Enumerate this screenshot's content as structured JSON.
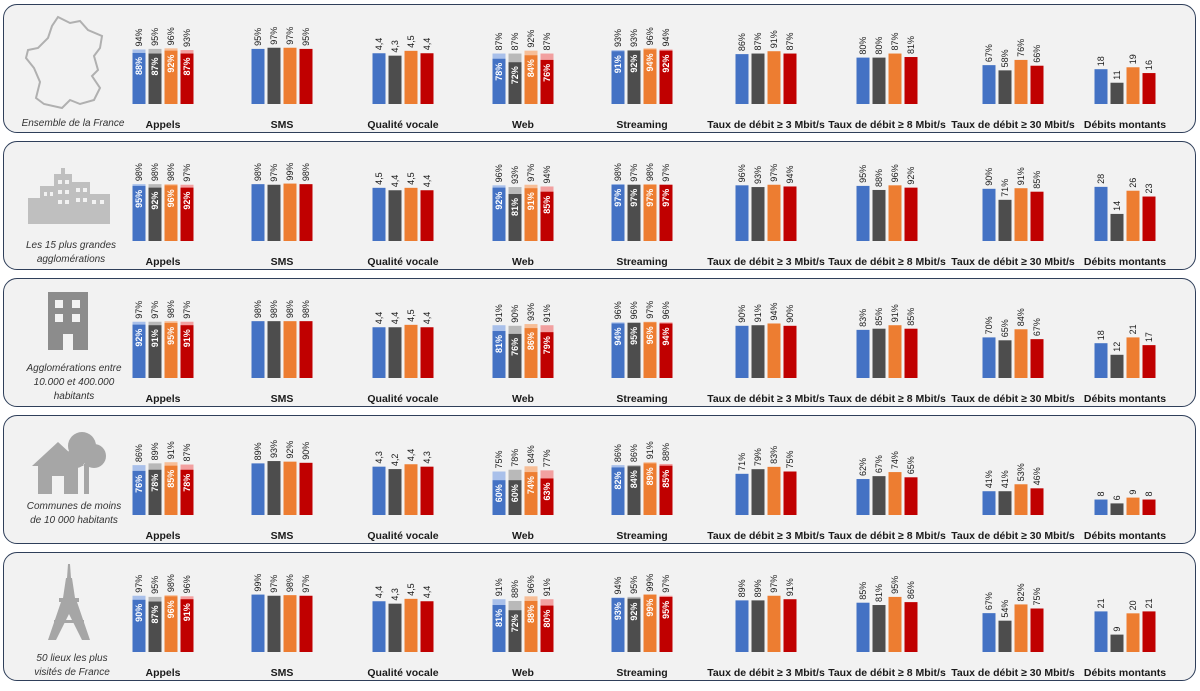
{
  "colors": {
    "operators": [
      "#4472c4",
      "#4d4d4d",
      "#ed7d31",
      "#c00000"
    ],
    "operators_light": [
      "#a9c0ea",
      "#b9b9b9",
      "#f7be97",
      "#f2a0a0"
    ]
  },
  "chart_data": [
    {
      "type": "bar",
      "zone": "Ensemble de la France",
      "icon": "france-map-icon",
      "metrics": [
        {
          "title": "Appels",
          "kind": "stacked",
          "series": [
            {
              "values": [
                88,
                87,
                92,
                87
              ]
            },
            {
              "values": [
                94,
                95,
                96,
                93
              ]
            }
          ]
        },
        {
          "title": "SMS",
          "kind": "single",
          "values": [
            95,
            97,
            97,
            95
          ]
        },
        {
          "title": "Qualité vocale",
          "kind": "single",
          "values": [
            4.4,
            4.3,
            4.5,
            4.4
          ]
        },
        {
          "title": "Web",
          "kind": "stacked",
          "series": [
            {
              "values": [
                78,
                72,
                84,
                76
              ]
            },
            {
              "values": [
                87,
                87,
                92,
                87
              ]
            }
          ]
        },
        {
          "title": "Streaming",
          "kind": "stacked",
          "series": [
            {
              "values": [
                91,
                92,
                94,
                92
              ]
            },
            {
              "values": [
                93,
                93,
                96,
                94
              ]
            }
          ]
        },
        {
          "title": "Taux de débit ≥ 3 Mbit/s",
          "kind": "single",
          "values": [
            86,
            87,
            91,
            87
          ]
        },
        {
          "title": "Taux de débit ≥ 8 Mbit/s",
          "kind": "single",
          "values": [
            80,
            80,
            87,
            81
          ]
        },
        {
          "title": "Taux de débit ≥ 30 Mbit/s",
          "kind": "single",
          "values": [
            67,
            58,
            76,
            66
          ]
        },
        {
          "title": "Débits montants",
          "kind": "single",
          "values": [
            18,
            11,
            19,
            16
          ]
        }
      ]
    },
    {
      "type": "bar",
      "zone": "Les 15 plus grandes agglomérations",
      "icon": "city-buildings-icon",
      "metrics": [
        {
          "title": "Appels",
          "kind": "stacked",
          "series": [
            {
              "values": [
                95,
                92,
                96,
                92
              ]
            },
            {
              "values": [
                98,
                98,
                98,
                97
              ]
            }
          ]
        },
        {
          "title": "SMS",
          "kind": "single",
          "values": [
            98,
            97,
            99,
            98
          ]
        },
        {
          "title": "Qualité vocale",
          "kind": "single",
          "values": [
            4.5,
            4.4,
            4.5,
            4.4
          ]
        },
        {
          "title": "Web",
          "kind": "stacked",
          "series": [
            {
              "values": [
                92,
                81,
                91,
                85
              ]
            },
            {
              "values": [
                96,
                93,
                97,
                94
              ]
            }
          ]
        },
        {
          "title": "Streaming",
          "kind": "stacked",
          "series": [
            {
              "values": [
                97,
                97,
                97,
                97
              ]
            },
            {
              "values": [
                98,
                97,
                98,
                97
              ]
            }
          ]
        },
        {
          "title": "Taux de débit ≥ 3 Mbit/s",
          "kind": "single",
          "values": [
            96,
            93,
            97,
            94
          ]
        },
        {
          "title": "Taux de débit ≥ 8 Mbit/s",
          "kind": "single",
          "values": [
            95,
            88,
            96,
            92
          ]
        },
        {
          "title": "Taux de débit ≥ 30 Mbit/s",
          "kind": "single",
          "values": [
            90,
            71,
            91,
            85
          ]
        },
        {
          "title": "Débits montants",
          "kind": "single",
          "values": [
            28,
            14,
            26,
            23
          ]
        }
      ]
    },
    {
      "type": "bar",
      "zone": "Agglomérations entre 10.000 et 400.000 habitants",
      "icon": "apartment-building-icon",
      "metrics": [
        {
          "title": "Appels",
          "kind": "stacked",
          "series": [
            {
              "values": [
                92,
                91,
                95,
                91
              ]
            },
            {
              "values": [
                97,
                97,
                98,
                97
              ]
            }
          ]
        },
        {
          "title": "SMS",
          "kind": "single",
          "values": [
            98,
            98,
            98,
            98
          ]
        },
        {
          "title": "Qualité vocale",
          "kind": "single",
          "values": [
            4.4,
            4.4,
            4.5,
            4.4
          ]
        },
        {
          "title": "Web",
          "kind": "stacked",
          "series": [
            {
              "values": [
                81,
                76,
                86,
                79
              ]
            },
            {
              "values": [
                91,
                90,
                93,
                91
              ]
            }
          ]
        },
        {
          "title": "Streaming",
          "kind": "stacked",
          "series": [
            {
              "values": [
                94,
                95,
                96,
                94
              ]
            },
            {
              "values": [
                96,
                96,
                97,
                96
              ]
            }
          ]
        },
        {
          "title": "Taux de débit ≥ 3 Mbit/s",
          "kind": "single",
          "values": [
            90,
            91,
            94,
            90
          ]
        },
        {
          "title": "Taux de débit ≥ 8 Mbit/s",
          "kind": "single",
          "values": [
            83,
            85,
            91,
            85
          ]
        },
        {
          "title": "Taux de débit ≥ 30 Mbit/s",
          "kind": "single",
          "values": [
            70,
            65,
            84,
            67
          ]
        },
        {
          "title": "Débits montants",
          "kind": "single",
          "values": [
            18,
            12,
            21,
            17
          ]
        }
      ]
    },
    {
      "type": "bar",
      "zone": "Communes de moins de 10 000 habitants",
      "icon": "house-tree-icon",
      "metrics": [
        {
          "title": "Appels",
          "kind": "stacked",
          "series": [
            {
              "values": [
                76,
                78,
                85,
                78
              ]
            },
            {
              "values": [
                86,
                89,
                91,
                87
              ]
            }
          ]
        },
        {
          "title": "SMS",
          "kind": "single",
          "values": [
            89,
            93,
            92,
            90
          ]
        },
        {
          "title": "Qualité vocale",
          "kind": "single",
          "values": [
            4.3,
            4.2,
            4.4,
            4.3
          ]
        },
        {
          "title": "Web",
          "kind": "stacked",
          "series": [
            {
              "values": [
                60,
                60,
                74,
                63
              ]
            },
            {
              "values": [
                75,
                78,
                84,
                77
              ]
            }
          ]
        },
        {
          "title": "Streaming",
          "kind": "stacked",
          "series": [
            {
              "values": [
                82,
                84,
                89,
                85
              ]
            },
            {
              "values": [
                86,
                86,
                91,
                88
              ]
            }
          ]
        },
        {
          "title": "Taux de débit ≥ 3 Mbit/s",
          "kind": "single",
          "values": [
            71,
            79,
            83,
            75
          ]
        },
        {
          "title": "Taux de débit ≥ 8 Mbit/s",
          "kind": "single",
          "values": [
            62,
            67,
            74,
            65
          ]
        },
        {
          "title": "Taux de débit ≥ 30 Mbit/s",
          "kind": "single",
          "values": [
            41,
            41,
            53,
            46
          ]
        },
        {
          "title": "Débits montants",
          "kind": "single",
          "values": [
            8,
            6,
            9,
            8
          ]
        }
      ]
    },
    {
      "type": "bar",
      "zone": "50 lieux les plus visités de France",
      "icon": "eiffel-tower-icon",
      "metrics": [
        {
          "title": "Appels",
          "kind": "stacked",
          "series": [
            {
              "values": [
                90,
                87,
                96,
                91
              ]
            },
            {
              "values": [
                97,
                95,
                98,
                96
              ]
            }
          ]
        },
        {
          "title": "SMS",
          "kind": "single",
          "values": [
            99,
            97,
            98,
            97
          ]
        },
        {
          "title": "Qualité vocale",
          "kind": "single",
          "values": [
            4.4,
            4.3,
            4.5,
            4.4
          ]
        },
        {
          "title": "Web",
          "kind": "stacked",
          "series": [
            {
              "values": [
                81,
                72,
                88,
                80
              ]
            },
            {
              "values": [
                91,
                88,
                96,
                91
              ]
            }
          ]
        },
        {
          "title": "Streaming",
          "kind": "stacked",
          "series": [
            {
              "values": [
                93,
                92,
                99,
                95
              ]
            },
            {
              "values": [
                94,
                95,
                99,
                97
              ]
            }
          ]
        },
        {
          "title": "Taux de débit ≥ 3 Mbit/s",
          "kind": "single",
          "values": [
            89,
            89,
            97,
            91
          ]
        },
        {
          "title": "Taux de débit ≥ 8 Mbit/s",
          "kind": "single",
          "values": [
            85,
            81,
            95,
            86
          ]
        },
        {
          "title": "Taux de débit ≥ 30 Mbit/s",
          "kind": "single",
          "values": [
            67,
            54,
            82,
            75
          ]
        },
        {
          "title": "Débits montants",
          "kind": "single",
          "values": [
            21,
            9,
            20,
            21
          ]
        }
      ]
    }
  ]
}
